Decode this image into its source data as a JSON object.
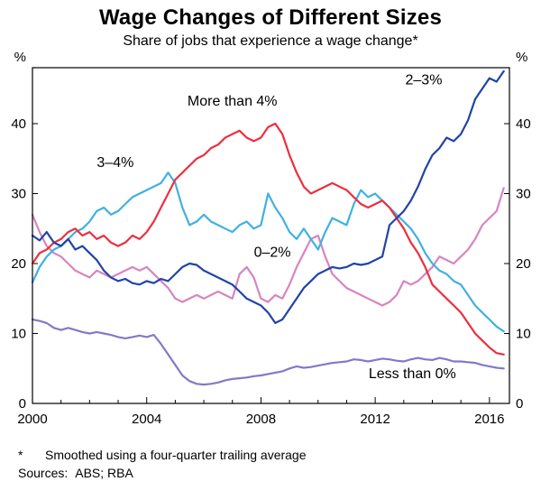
{
  "header": {
    "title": "Wage Changes of Different Sizes",
    "subtitle": "Share of jobs that experience a wage change*"
  },
  "footnotes": {
    "marker": "*",
    "note": "Smoothed using a four-quarter trailing average",
    "sources_label": "Sources:",
    "sources_value": "ABS; RBA"
  },
  "chart_data": {
    "type": "line",
    "title": "Wage Changes of Different Sizes",
    "subtitle": "Share of jobs that experience a wage change*",
    "ylabel_left": "%",
    "ylabel_right": "%",
    "ylim": [
      0,
      48
    ],
    "yticks": [
      0,
      10,
      20,
      30,
      40
    ],
    "xlim": [
      2000,
      2016.7
    ],
    "xticks": [
      2000,
      2004,
      2008,
      2012,
      2016
    ],
    "grid": false,
    "legend": "inline-labels",
    "x": [
      2000.0,
      2000.25,
      2000.5,
      2000.75,
      2001.0,
      2001.25,
      2001.5,
      2001.75,
      2002.0,
      2002.25,
      2002.5,
      2002.75,
      2003.0,
      2003.25,
      2003.5,
      2003.75,
      2004.0,
      2004.25,
      2004.5,
      2004.75,
      2005.0,
      2005.25,
      2005.5,
      2005.75,
      2006.0,
      2006.25,
      2006.5,
      2006.75,
      2007.0,
      2007.25,
      2007.5,
      2007.75,
      2008.0,
      2008.25,
      2008.5,
      2008.75,
      2009.0,
      2009.25,
      2009.5,
      2009.75,
      2010.0,
      2010.25,
      2010.5,
      2010.75,
      2011.0,
      2011.25,
      2011.5,
      2011.75,
      2012.0,
      2012.25,
      2012.5,
      2012.75,
      2013.0,
      2013.25,
      2013.5,
      2013.75,
      2014.0,
      2014.25,
      2014.5,
      2014.75,
      2015.0,
      2015.25,
      2015.5,
      2015.75,
      2016.0,
      2016.25,
      2016.5
    ],
    "series": [
      {
        "name": "0–2%",
        "color": "#d884c0",
        "label_x": 2008.4,
        "label_y": 21.0,
        "values": [
          27.0,
          24.5,
          22.5,
          21.5,
          21.0,
          20.0,
          19.0,
          18.5,
          18.0,
          19.0,
          18.5,
          18.0,
          18.5,
          19.0,
          19.5,
          19.0,
          19.5,
          18.5,
          17.5,
          16.5,
          15.0,
          14.5,
          15.0,
          15.5,
          15.0,
          15.5,
          16.0,
          15.5,
          15.0,
          18.5,
          19.5,
          18.0,
          15.0,
          14.5,
          15.5,
          15.0,
          17.0,
          19.5,
          21.5,
          23.5,
          24.0,
          21.0,
          18.5,
          17.5,
          16.5,
          16.0,
          15.5,
          15.0,
          14.5,
          14.0,
          14.5,
          15.5,
          17.5,
          17.0,
          17.5,
          18.5,
          19.5,
          21.0,
          20.5,
          20.0,
          21.0,
          22.0,
          23.5,
          25.5,
          26.5,
          27.5,
          30.8
        ]
      },
      {
        "name": "Less than 0%",
        "color": "#8379c8",
        "label_x": 2013.3,
        "label_y": 3.6,
        "values": [
          12.0,
          11.8,
          11.5,
          10.8,
          10.5,
          10.8,
          10.5,
          10.2,
          10.0,
          10.2,
          10.0,
          9.8,
          9.5,
          9.3,
          9.5,
          9.7,
          9.5,
          9.8,
          8.5,
          7.0,
          5.5,
          4.0,
          3.2,
          2.8,
          2.7,
          2.8,
          3.0,
          3.3,
          3.5,
          3.6,
          3.7,
          3.9,
          4.0,
          4.2,
          4.4,
          4.6,
          5.0,
          5.3,
          5.1,
          5.2,
          5.4,
          5.6,
          5.8,
          5.9,
          6.0,
          6.3,
          6.2,
          6.0,
          6.2,
          6.4,
          6.3,
          6.1,
          6.0,
          6.3,
          6.5,
          6.3,
          6.2,
          6.5,
          6.3,
          6.0,
          6.0,
          5.9,
          5.8,
          5.5,
          5.3,
          5.1,
          5.0
        ]
      },
      {
        "name": "3–4%",
        "color": "#3fb1e0",
        "label_x": 2002.9,
        "label_y": 33.8,
        "values": [
          17.3,
          19.5,
          21.0,
          22.0,
          22.5,
          23.5,
          24.5,
          25.0,
          26.0,
          27.5,
          28.0,
          27.0,
          27.5,
          28.5,
          29.5,
          30.0,
          30.5,
          31.0,
          31.5,
          33.0,
          31.5,
          28.0,
          25.5,
          26.0,
          27.0,
          26.0,
          25.5,
          25.0,
          24.5,
          25.5,
          26.0,
          25.0,
          25.5,
          30.0,
          28.0,
          26.5,
          24.5,
          23.5,
          25.0,
          23.5,
          22.0,
          24.5,
          26.5,
          26.0,
          25.5,
          28.5,
          30.5,
          29.5,
          30.0,
          29.0,
          28.0,
          27.0,
          26.0,
          25.0,
          23.5,
          21.5,
          20.0,
          19.0,
          18.5,
          17.5,
          17.0,
          15.5,
          14.0,
          13.0,
          12.0,
          11.0,
          10.3
        ]
      },
      {
        "name": "More than 4%",
        "color": "#ee2e3e",
        "label_x": 2007.0,
        "label_y": 42.6,
        "values": [
          20.0,
          21.5,
          22.0,
          23.0,
          23.5,
          24.5,
          25.0,
          24.0,
          24.5,
          23.5,
          24.0,
          23.0,
          22.5,
          23.0,
          24.0,
          23.5,
          24.5,
          26.0,
          28.0,
          30.0,
          32.0,
          33.0,
          34.0,
          35.0,
          35.5,
          36.5,
          37.0,
          38.0,
          38.5,
          39.0,
          38.0,
          37.5,
          38.0,
          39.5,
          40.0,
          38.5,
          35.5,
          33.0,
          31.0,
          30.0,
          30.5,
          31.0,
          31.5,
          31.0,
          30.5,
          29.5,
          28.5,
          28.0,
          28.5,
          29.0,
          28.0,
          26.5,
          25.0,
          23.0,
          21.5,
          19.5,
          17.0,
          16.0,
          15.0,
          14.0,
          13.0,
          11.5,
          10.0,
          9.0,
          8.0,
          7.2,
          7.0
        ]
      },
      {
        "name": "2–3%",
        "color": "#2144a6",
        "label_x": 2013.7,
        "label_y": 45.6,
        "values": [
          24.0,
          23.3,
          24.5,
          23.0,
          22.5,
          23.5,
          22.0,
          22.5,
          21.5,
          20.5,
          19.0,
          18.0,
          17.5,
          17.8,
          17.2,
          17.0,
          17.5,
          17.2,
          17.8,
          17.5,
          18.5,
          19.5,
          20.0,
          19.8,
          19.0,
          18.5,
          18.0,
          17.5,
          17.0,
          16.0,
          15.0,
          14.5,
          14.0,
          13.0,
          11.5,
          12.0,
          13.5,
          15.0,
          16.5,
          17.5,
          18.5,
          19.0,
          19.5,
          19.3,
          19.5,
          20.0,
          19.8,
          20.0,
          20.5,
          21.0,
          25.5,
          26.5,
          27.5,
          29.0,
          31.0,
          33.5,
          35.5,
          36.5,
          38.0,
          37.5,
          38.5,
          40.5,
          43.5,
          45.0,
          46.5,
          46.0,
          47.5
        ]
      }
    ]
  }
}
